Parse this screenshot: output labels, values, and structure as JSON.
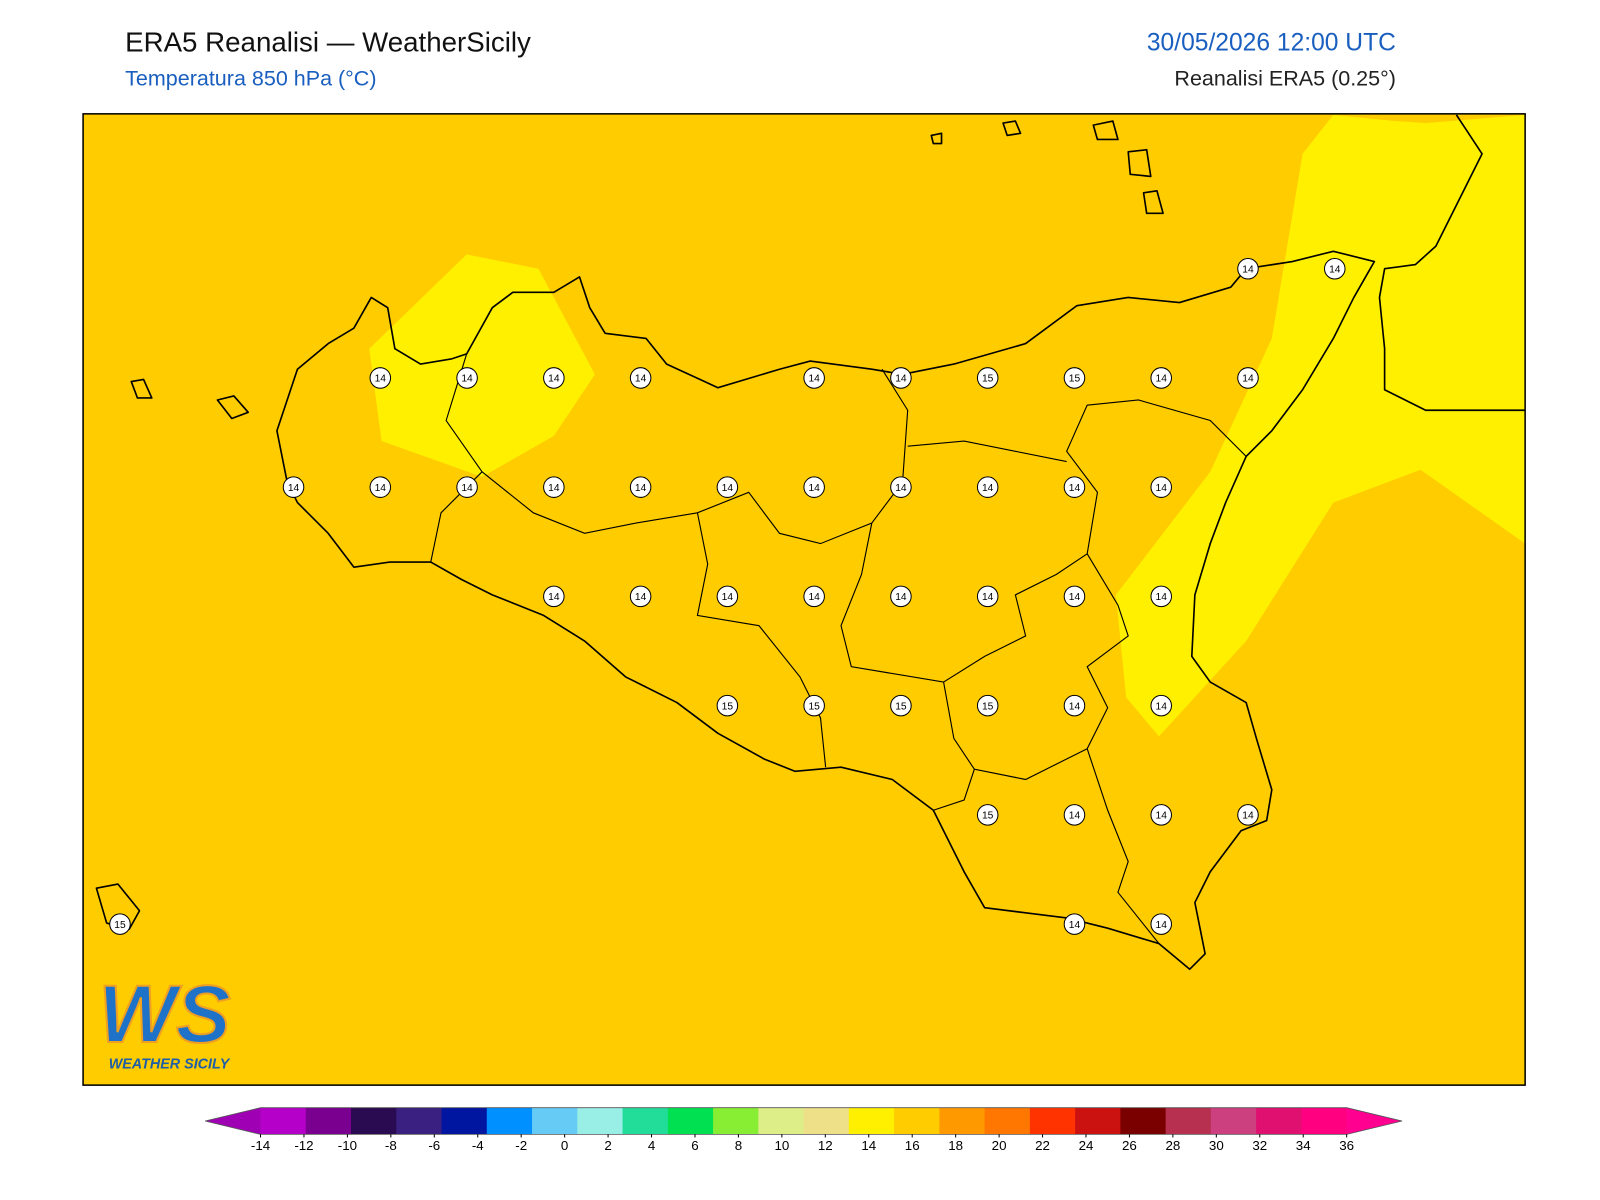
{
  "header": {
    "title": "ERA5 Reanalisi — WeatherSicily",
    "subtitle": "Temperatura 850 hPa (°C)",
    "datetime": "30/05/2026 12:00 UTC",
    "source": "Reanalisi ERA5 (0.25°)"
  },
  "map": {
    "grid": [
      [
        null,
        null,
        null,
        null,
        null,
        null,
        null,
        null,
        null,
        null,
        null,
        null,
        null,
        14,
        14
      ],
      [
        null,
        null,
        null,
        14,
        14,
        14,
        14,
        null,
        14,
        14,
        15,
        15,
        14,
        14,
        null
      ],
      [
        null,
        null,
        14,
        14,
        14,
        14,
        14,
        14,
        14,
        14,
        14,
        14,
        14,
        null,
        null
      ],
      [
        null,
        null,
        null,
        null,
        null,
        14,
        14,
        14,
        14,
        14,
        14,
        14,
        14,
        null,
        null
      ],
      [
        null,
        null,
        null,
        null,
        null,
        null,
        null,
        15,
        15,
        15,
        15,
        14,
        14,
        null,
        null
      ],
      [
        null,
        null,
        null,
        null,
        null,
        null,
        null,
        null,
        null,
        null,
        15,
        14,
        14,
        14,
        null
      ],
      [
        15,
        null,
        null,
        null,
        null,
        null,
        null,
        null,
        null,
        null,
        null,
        14,
        14,
        null,
        null
      ]
    ]
  },
  "logo": {
    "mark": "WS",
    "name": "WEATHER SICILY"
  },
  "colorbar": {
    "ticks": [
      -14,
      -12,
      -10,
      -8,
      -6,
      -4,
      -2,
      0,
      2,
      4,
      6,
      8,
      10,
      12,
      14,
      16,
      18,
      20,
      22,
      24,
      26,
      28,
      30,
      32,
      34,
      36
    ],
    "under_color": "#a000b4",
    "colors": [
      "#b400c8",
      "#7a0090",
      "#2a0a50",
      "#3a2080",
      "#0015a0",
      "#0090ff",
      "#66ccf5",
      "#99eee6",
      "#22dd99",
      "#00e050",
      "#88ee33",
      "#ddee88",
      "#eee088",
      "#fff000",
      "#ffcc00",
      "#ff9900",
      "#ff7700",
      "#ff3300",
      "#cc1111",
      "#7a0000",
      "#b83050",
      "#cc4080",
      "#e01070",
      "#ff0080"
    ],
    "over_color": "#ff0090"
  }
}
